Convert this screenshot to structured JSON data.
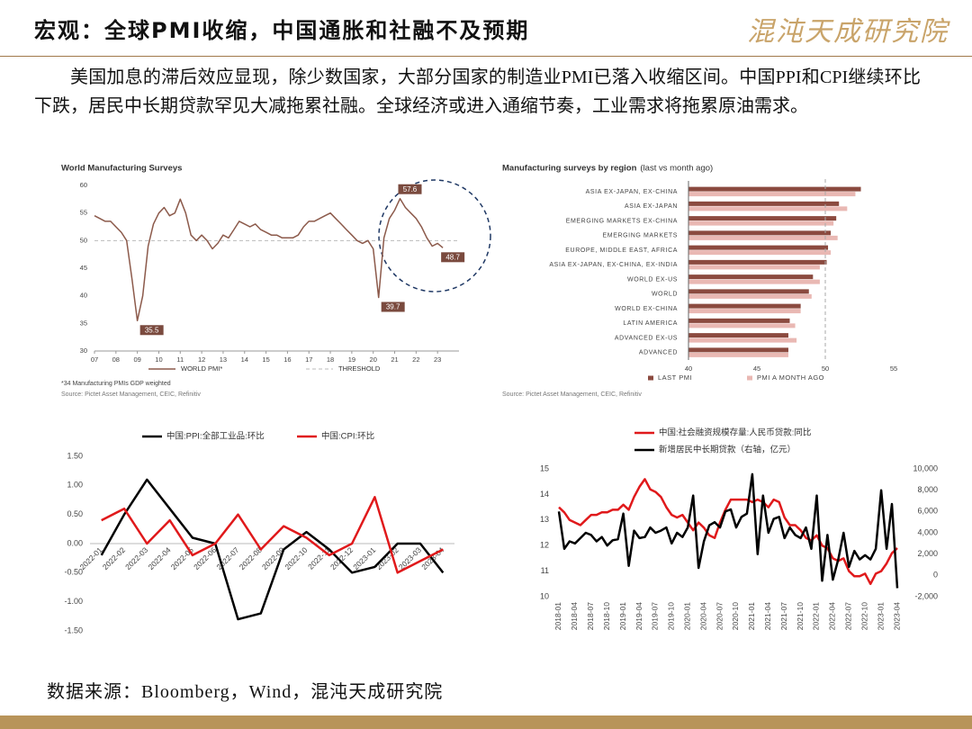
{
  "header": {
    "title": "宏观：全球PMI收缩，中国通胀和社融不及预期",
    "logo": "混沌天成研究院"
  },
  "intro": "美国加息的滞后效应显现，除少数国家，大部分国家的制造业PMI已落入收缩区间。中国PPI和CPI继续环比下跌，居民中长期贷款罕见大减拖累社融。全球经济或进入通缩节奏，工业需求将拖累原油需求。",
  "footer": "数据来源：Bloomberg，Wind，混沌天成研究院",
  "chart_data": [
    {
      "type": "line",
      "title": "World Manufacturing Surveys",
      "note": "*34 Manufacturing PMIs GDP weighted",
      "source": "Source: Pictet Asset Management, CEIC, Refinitiv",
      "x": [
        7,
        7.25,
        7.5,
        7.75,
        8,
        8.25,
        8.5,
        8.75,
        9,
        9.25,
        9.5,
        9.75,
        10,
        10.25,
        10.5,
        10.75,
        11,
        11.25,
        11.5,
        11.75,
        12,
        12.25,
        12.5,
        12.75,
        13,
        13.25,
        13.5,
        13.75,
        14,
        14.25,
        14.5,
        14.75,
        15,
        15.25,
        15.5,
        15.75,
        16,
        16.25,
        16.5,
        16.75,
        17,
        17.25,
        17.5,
        17.75,
        18,
        18.25,
        18.5,
        18.75,
        19,
        19.25,
        19.5,
        19.75,
        20,
        20.25,
        20.5,
        20.75,
        21,
        21.25,
        21.5,
        21.75,
        22,
        22.25,
        22.5,
        22.75,
        23,
        23.25
      ],
      "series": [
        {
          "name": "WORLD PMI*",
          "color": "#8c5a4b",
          "values": [
            54.5,
            54,
            53.5,
            53.5,
            52.5,
            51.5,
            50,
            43,
            35.5,
            40,
            49,
            53,
            55,
            56,
            54.5,
            55,
            57.5,
            55,
            51,
            50,
            51,
            50,
            48.5,
            49.5,
            51,
            50.5,
            52,
            53.5,
            53,
            52.5,
            53,
            52,
            51.5,
            51,
            51,
            50.5,
            50.5,
            50.5,
            51,
            52.5,
            53.5,
            53.5,
            54,
            54.5,
            55,
            54,
            53,
            52,
            51,
            50,
            49.5,
            50,
            48.5,
            39.7,
            50.5,
            54,
            55.5,
            57.6,
            56,
            55,
            54,
            52.5,
            50.5,
            49,
            49.5,
            48.7
          ]
        }
      ],
      "threshold": {
        "name": "THRESHOLD",
        "value": 50,
        "color": "#bbbbbb"
      },
      "annotations": [
        {
          "label": "35.5",
          "x": 9,
          "y": 35.5
        },
        {
          "label": "39.7",
          "x": 20.25,
          "y": 39.7
        },
        {
          "label": "57.6",
          "x": 21.25,
          "y": 57.6
        },
        {
          "label": "48.7",
          "x": 23.25,
          "y": 48.7
        }
      ],
      "annotation_color": "#7a4a3e",
      "xlim": [
        7,
        24
      ],
      "xticks": [
        {
          "value": 7,
          "label": "07"
        },
        {
          "value": 8,
          "label": "08"
        },
        {
          "value": 9,
          "label": "09"
        },
        10,
        11,
        12,
        13,
        14,
        15,
        16,
        17,
        18,
        19,
        20,
        21,
        22,
        23
      ],
      "ylim": [
        30,
        60
      ],
      "yticks": [
        30,
        35,
        40,
        45,
        50,
        55,
        60
      ],
      "legend": "bottom"
    },
    {
      "type": "hbar",
      "title": "Manufacturing surveys by region",
      "subtitle": "(last vs month ago)",
      "source": "Source: Pictet Asset Management, CEIC, Refinitiv",
      "categories": [
        "ASIA EX-JAPAN, EX-CHINA",
        "ASIA EX-JAPAN",
        "EMERGING MARKETS EX-CHINA",
        "EMERGING MARKETS",
        "EUROPE, MIDDLE EAST, AFRICA",
        "ASIA EX-JAPAN, EX-CHINA, EX-INDIA",
        "WORLD EX-US",
        "WORLD",
        "WORLD EX-CHINA",
        "LATIN AMERICA",
        "ADVANCED EX-US",
        "ADVANCED"
      ],
      "series": [
        {
          "name": "LAST PMI",
          "color": "#8b4a3f",
          "values": [
            52.6,
            51,
            50.8,
            50.4,
            50.2,
            50.1,
            49.1,
            48.8,
            48.2,
            47.4,
            47.3,
            47.3
          ]
        },
        {
          "name": "PMI A MONTH AGO",
          "color": "#e9b8b3",
          "values": [
            52.2,
            51.6,
            50.6,
            50.9,
            50.4,
            49.6,
            49.6,
            49,
            48.2,
            47.8,
            47.9,
            47.3
          ]
        }
      ],
      "threshold": {
        "value": 50,
        "color": "#aaaaaa"
      },
      "xlim": [
        40,
        55
      ],
      "xticks": [
        40,
        45,
        50,
        55
      ],
      "legend": "bottom"
    },
    {
      "type": "line",
      "categories": [
        "2022-01",
        "2022-02",
        "2022-03",
        "2022-04",
        "2022-05",
        "2022-06",
        "2022-07",
        "2022-08",
        "2022-09",
        "2022-10",
        "2022-11",
        "2022-12",
        "2023-01",
        "2023-02",
        "2023-03",
        "2023-04"
      ],
      "series": [
        {
          "name": "中国:PPI:全部工业品:环比",
          "color": "#000000",
          "values": [
            -0.2,
            0.5,
            1.1,
            0.6,
            0.1,
            0,
            -1.3,
            -1.2,
            -0.1,
            0.2,
            -0.1,
            -0.5,
            -0.4,
            0,
            0,
            -0.5
          ]
        },
        {
          "name": "中国:CPI:环比",
          "color": "#e0191b",
          "values": [
            0.4,
            0.6,
            0,
            0.4,
            -0.2,
            0,
            0.5,
            -0.1,
            0.3,
            0.1,
            -0.2,
            0,
            0.8,
            -0.5,
            -0.3,
            -0.1
          ]
        }
      ],
      "ylim": [
        -1.5,
        1.5
      ],
      "yticks": [
        {
          "value": -1.5,
          "label": "-1.50"
        },
        {
          "value": -1,
          "label": "-1.00"
        },
        {
          "value": -0.5,
          "label": "-0.50"
        },
        {
          "value": 0,
          "label": "0.00"
        },
        {
          "value": 0.5,
          "label": "0.50"
        },
        {
          "value": 1,
          "label": "1.00"
        },
        {
          "value": 1.5,
          "label": "1.50"
        }
      ],
      "legend": "top"
    },
    {
      "type": "line",
      "categories": [
        "2018-01",
        null,
        null,
        "2018-04",
        null,
        null,
        "2018-07",
        null,
        null,
        "2018-10",
        null,
        null,
        "2019-01",
        null,
        null,
        "2019-04",
        null,
        null,
        "2019-07",
        null,
        null,
        "2019-10",
        null,
        null,
        "2020-01",
        null,
        null,
        "2020-04",
        null,
        null,
        "2020-07",
        null,
        null,
        "2020-10",
        null,
        null,
        "2021-01",
        null,
        null,
        "2021-04",
        null,
        null,
        "2021-07",
        null,
        null,
        "2021-10",
        null,
        null,
        "2022-01",
        null,
        null,
        "2022-04",
        null,
        null,
        "2022-07",
        null,
        null,
        "2022-10",
        null,
        null,
        "2023-01",
        null,
        null,
        "2023-04"
      ],
      "series": [
        {
          "name": "中国:社会融资规模存量:人民币贷款:同比",
          "color": "#e0191b",
          "values": [
            13.5,
            13.3,
            13,
            12.9,
            12.8,
            13,
            13.2,
            13.2,
            13.3,
            13.3,
            13.4,
            13.4,
            13.6,
            13.4,
            13.9,
            14.3,
            14.6,
            14.2,
            14.1,
            13.9,
            13.5,
            13.2,
            13.1,
            13.2,
            12.9,
            12.6,
            12.9,
            12.7,
            12.4,
            12.3,
            12.9,
            13.4,
            13.8,
            13.8,
            13.8,
            13.8,
            13.7,
            13.8,
            13.7,
            13.5,
            13.8,
            13.7,
            13.1,
            12.8,
            12.8,
            12.6,
            12.3,
            12.2,
            12.4,
            12,
            11.9,
            11.5,
            11.4,
            11.5,
            11,
            10.8,
            10.8,
            10.9,
            10.5,
            10.9,
            11,
            11.3,
            11.7,
            11.9
          ]
        },
        {
          "name": "新增居民中长期贷款（右轴，亿元）",
          "color": "#000000",
          "axis": "y2",
          "values": [
            6000,
            2500,
            3200,
            3000,
            3500,
            4000,
            3800,
            3200,
            3600,
            2800,
            3300,
            3400,
            5800,
            900,
            4200,
            3500,
            3600,
            4500,
            4000,
            4200,
            4500,
            3000,
            4000,
            3600,
            4500,
            7500,
            700,
            3200,
            4700,
            5000,
            4500,
            6000,
            6200,
            4500,
            5500,
            5800,
            9500,
            2000,
            7500,
            4000,
            5300,
            5500,
            3500,
            4500,
            3800,
            3500,
            4500,
            2500,
            7500,
            -500,
            3800,
            -400,
            1500,
            4000,
            800,
            2300,
            1500,
            1900,
            1500,
            2500,
            8000,
            2500,
            6700,
            -1200
          ]
        }
      ],
      "ylim": [
        10,
        15
      ],
      "yticks": [
        10,
        11,
        12,
        13,
        14,
        15
      ],
      "y2lim": [
        -2000,
        10000
      ],
      "y2ticks": [
        {
          "value": -2000,
          "label": "-2,000"
        },
        0,
        {
          "value": 2000,
          "label": "2,000"
        },
        {
          "value": 4000,
          "label": "4,000"
        },
        {
          "value": 6000,
          "label": "6,000"
        },
        {
          "value": 8000,
          "label": "8,000"
        },
        {
          "value": 10000,
          "label": "10,000"
        }
      ],
      "legend": "top"
    }
  ]
}
